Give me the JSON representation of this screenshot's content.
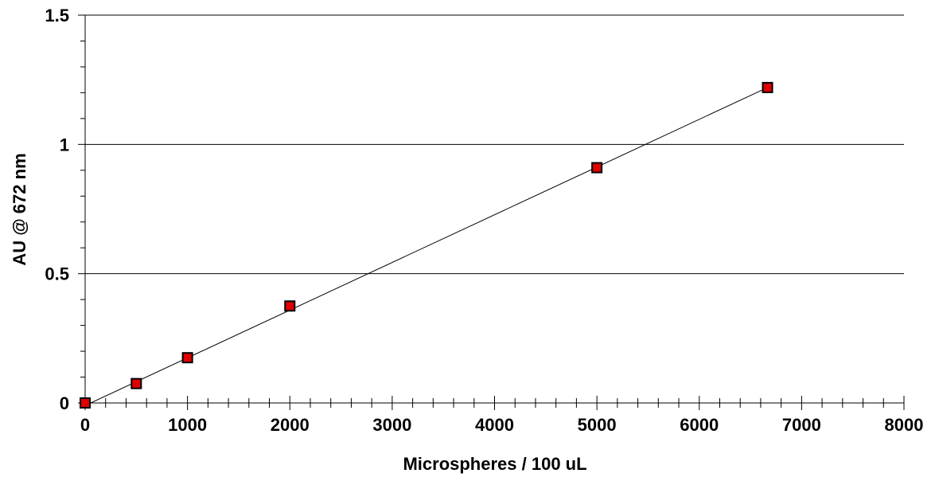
{
  "chart_data": {
    "type": "scatter",
    "title": "",
    "xlabel": "Microspheres / 100 uL",
    "ylabel": "AU @ 672 nm",
    "xlim": [
      0,
      8000
    ],
    "ylim": [
      0,
      1.5
    ],
    "x_ticks": [
      0,
      1000,
      2000,
      3000,
      4000,
      5000,
      6000,
      7000,
      8000
    ],
    "x_tick_labels": [
      "0",
      "1000",
      "2000",
      "3000",
      "4000",
      "5000",
      "6000",
      "7000",
      "8000"
    ],
    "y_ticks": [
      0,
      0.5,
      1,
      1.5
    ],
    "y_tick_labels": [
      "0",
      "0.5",
      "1",
      "1.5"
    ],
    "x_minor_step": 200,
    "y_minor_step": 0.1,
    "grid": "horizontal major lines",
    "legend": "none",
    "series": [
      {
        "x": [
          0,
          500,
          1000,
          2000,
          5000,
          6667
        ],
        "y": [
          0.0,
          0.075,
          0.175,
          0.375,
          0.91,
          1.22
        ],
        "marker": "square",
        "marker_color": "#e00000"
      }
    ],
    "trendline": {
      "type": "linear",
      "x_range": [
        0,
        6667
      ],
      "y_range": [
        -0.01,
        1.22
      ],
      "color": "#000000"
    }
  }
}
